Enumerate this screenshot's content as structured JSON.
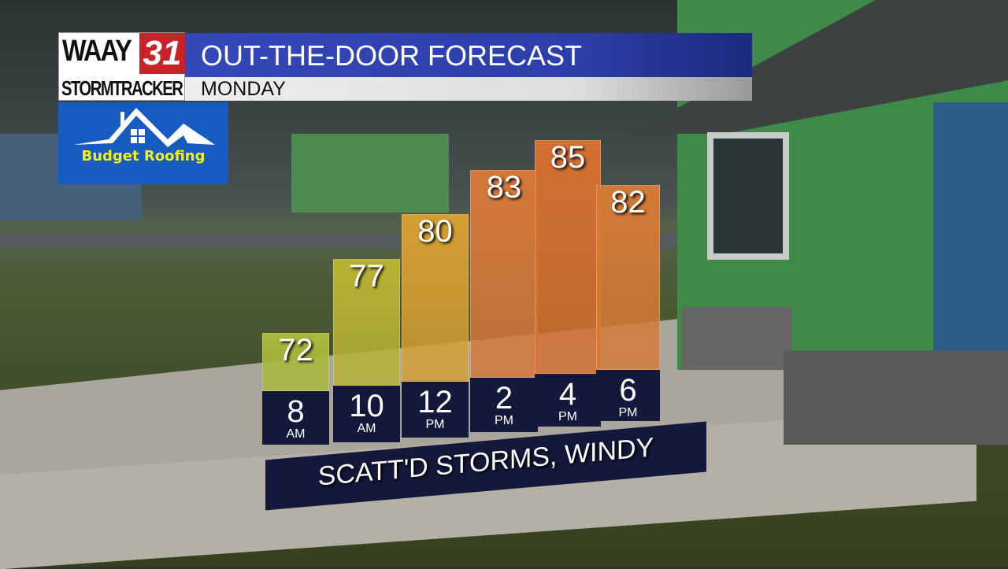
{
  "header": {
    "station": "WAAY",
    "channel": "31",
    "brand": "STORMTRACKER",
    "title": "OUT-THE-DOOR FORECAST",
    "subtitle": "MONDAY"
  },
  "sponsor": {
    "name": "Budget Roofing",
    "icon": "house-roof-icon"
  },
  "chart_data": {
    "type": "bar",
    "categories": [
      "8 AM",
      "10 AM",
      "12 PM",
      "2 PM",
      "4 PM",
      "6 PM"
    ],
    "hours": [
      "8",
      "10",
      "12",
      "2",
      "4",
      "6"
    ],
    "periods": [
      "AM",
      "AM",
      "PM",
      "PM",
      "PM",
      "PM"
    ],
    "values": [
      72,
      77,
      80,
      83,
      85,
      82
    ],
    "colors": [
      "#a9b93c",
      "#b8b233",
      "#d49e32",
      "#d5783a",
      "#d46f30",
      "#d47a36"
    ],
    "ylabel": ""
  },
  "banner": {
    "text": "SCATT'D STORMS, WINDY"
  }
}
